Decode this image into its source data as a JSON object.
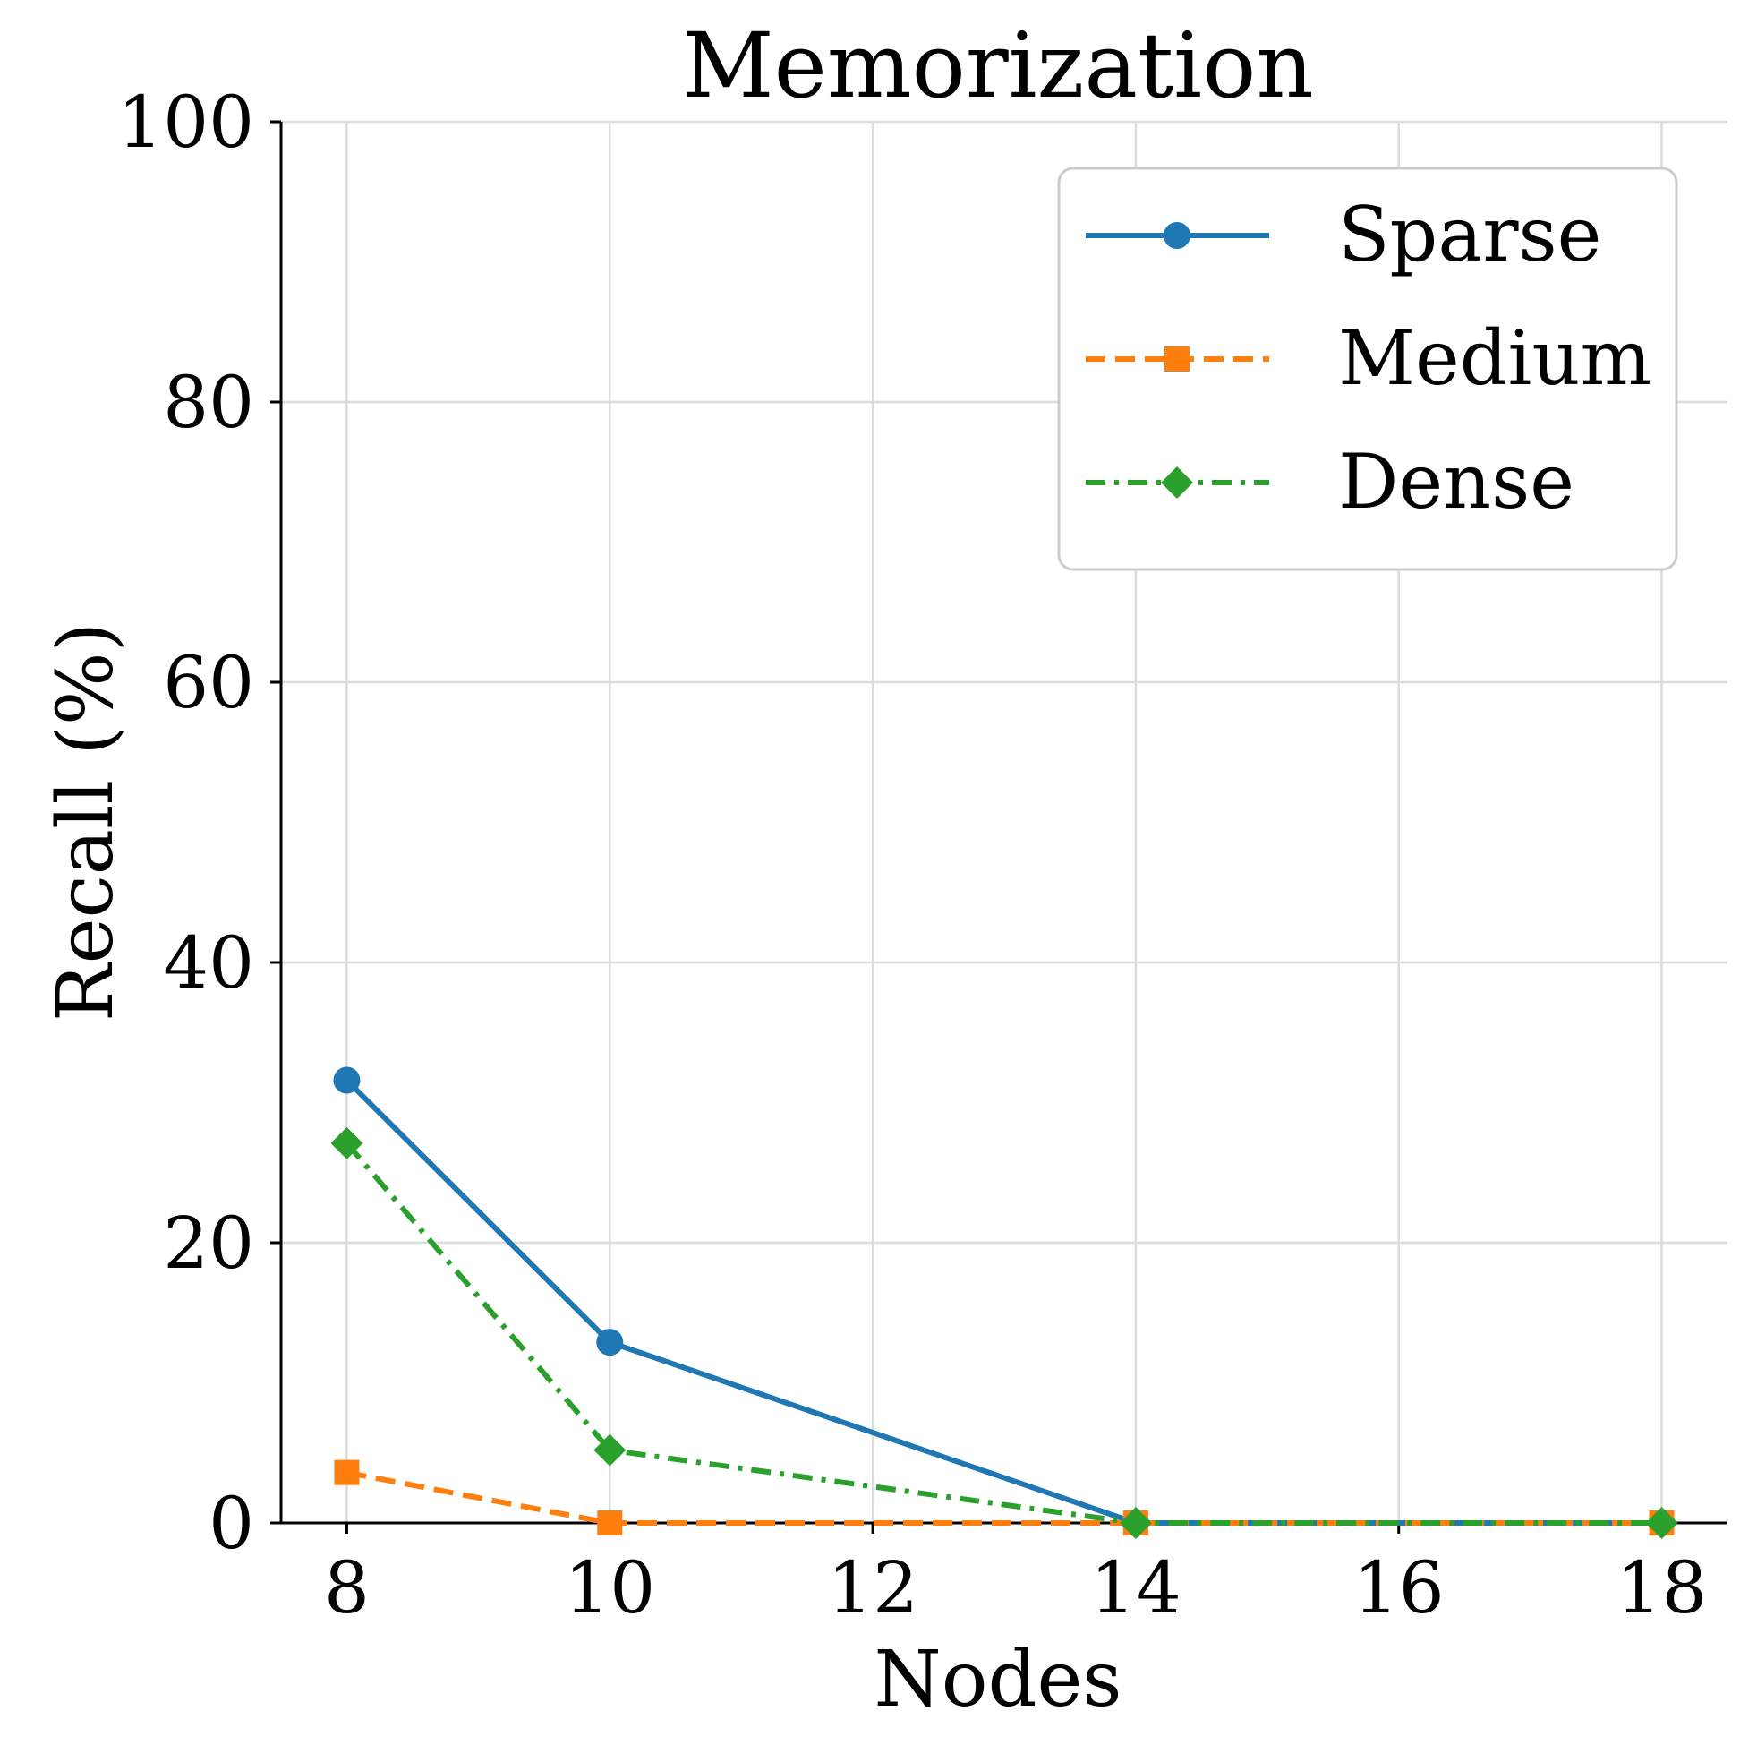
{
  "chart_data": {
    "type": "line",
    "title": "Memorization",
    "xlabel": "Nodes",
    "ylabel": "Recall (%)",
    "x": [
      8,
      10,
      14,
      18
    ],
    "xticks": [
      8,
      10,
      12,
      14,
      16,
      18
    ],
    "yticks": [
      0,
      20,
      40,
      60,
      80,
      100
    ],
    "xlim": [
      7.5,
      18.5
    ],
    "ylim": [
      0,
      100
    ],
    "grid": true,
    "legend_position": "top-right",
    "series": [
      {
        "name": "Sparse",
        "values": [
          31.6,
          12.9,
          0,
          0
        ],
        "color": "#1f77b4",
        "linestyle": "solid",
        "marker": "circle"
      },
      {
        "name": "Medium",
        "values": [
          3.6,
          0,
          0,
          0
        ],
        "color": "#ff7f0e",
        "linestyle": "dashed",
        "marker": "square"
      },
      {
        "name": "Dense",
        "values": [
          27.1,
          5.2,
          0,
          0
        ],
        "color": "#2ca02c",
        "linestyle": "dashdot",
        "marker": "diamond"
      }
    ]
  }
}
